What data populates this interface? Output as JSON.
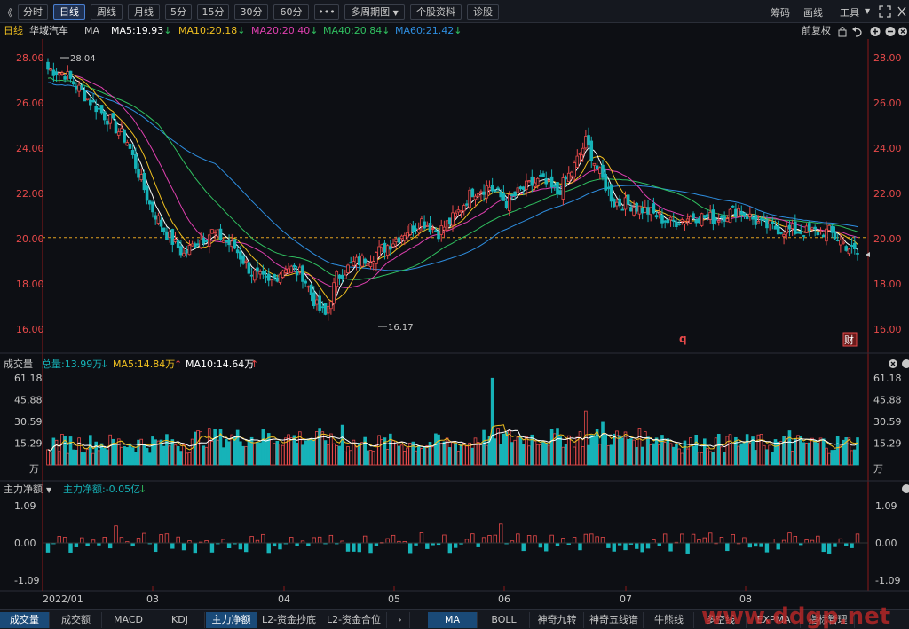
{
  "toolbar": {
    "left_arrow": "《",
    "periods": [
      "分时",
      "日线",
      "周线",
      "月线",
      "5分",
      "15分",
      "30分",
      "60分"
    ],
    "more": "•••",
    "multi_period": "多周期图",
    "multi_period_arrow": "▼",
    "stock_info": "个股资料",
    "diagnose": "诊股",
    "right": [
      "筹码",
      "画线",
      "工具"
    ],
    "tools_arrow": "▼"
  },
  "info": {
    "period": "日线",
    "stock_name": "华域汽车",
    "ma_label": "MA",
    "ma5": "MA5:19.93",
    "ma10": "MA10:20.18",
    "ma20": "MA20:20.40",
    "ma40": "MA40:20.84",
    "ma60": "MA60:21.42",
    "adjust": "前复权"
  },
  "colors": {
    "up": "#e84a4a",
    "down": "#16b3b8",
    "ma5": "#ffffff",
    "ma10": "#f0c020",
    "ma20": "#e040b0",
    "ma40": "#30c060",
    "ma60": "#2e8ee0",
    "axis_red": "#e84a4a"
  },
  "price_axis": {
    "ticks": [
      "28.00",
      "26.00",
      "24.00",
      "22.00",
      "20.00",
      "18.00",
      "16.00"
    ]
  },
  "price_annotations": {
    "high": "28.04",
    "low": "16.17",
    "q_marker": "q",
    "cai_marker": "财"
  },
  "volume_panel": {
    "title": "成交量",
    "total": "总量:13.99万",
    "ma5": "MA5:14.84万",
    "ma10": "MA10:14.64万",
    "ticks": [
      "61.18",
      "45.88",
      "30.59",
      "15.29"
    ],
    "unit": "万"
  },
  "flow_panel": {
    "title": "主力净额",
    "value": "主力净额:-0.05亿",
    "ticks": [
      "1.09",
      "0.00",
      "-1.09"
    ]
  },
  "x_axis": {
    "labels": [
      "2022/01",
      "03",
      "04",
      "05",
      "06",
      "07",
      "08"
    ]
  },
  "bottom_tabs": [
    "成交量",
    "成交额",
    "MACD",
    "KDJ",
    "主力净额",
    "L2-资金抄底",
    "L2-资金合位"
  ],
  "bottom_tabs_right": [
    "MA",
    "BOLL",
    "神奇九转",
    "神奇五线谱",
    "牛熊线",
    "多空线",
    "EXPMA",
    "指标管理"
  ],
  "watermark": "www.ddgp.net",
  "chart_data": {
    "type": "candlestick",
    "title": "",
    "ylim": [
      16,
      28
    ],
    "x_range": [
      "2022/01",
      "2022/08"
    ],
    "first_close": 27.5,
    "high": 28.04,
    "low": 16.17,
    "last_close": 19.3,
    "reference_line": 20.05
  }
}
